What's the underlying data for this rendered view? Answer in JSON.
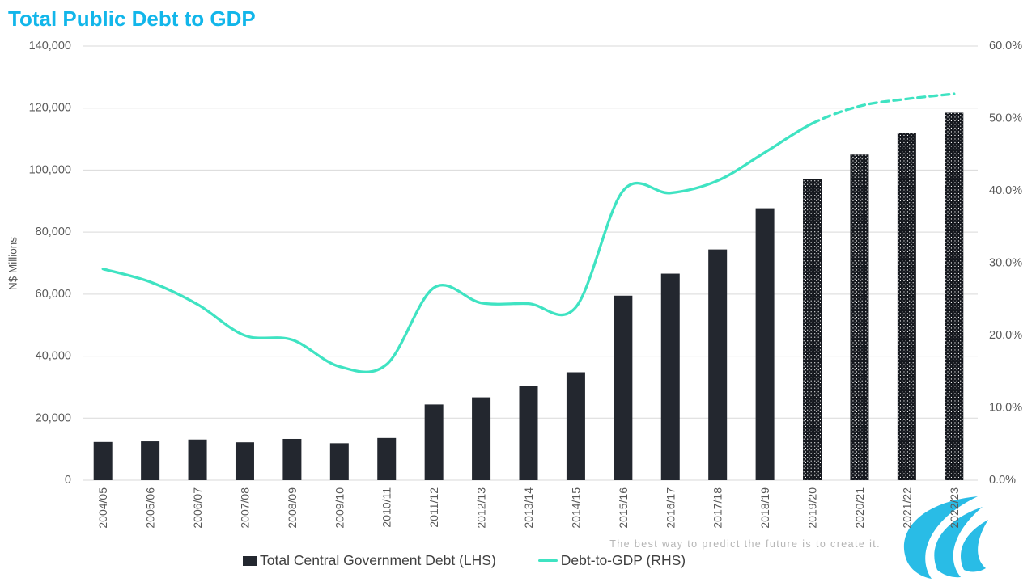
{
  "header": {
    "title": "Total Public Debt to GDP"
  },
  "footer": {
    "tagline": "The best way to predict the future is to create it.",
    "logo": "cyan-swoosh-logo"
  },
  "legend": {
    "items": [
      {
        "label": "Total Central Government Debt (LHS)",
        "marker": "bar-swatch",
        "color": "#23272f"
      },
      {
        "label": "Debt-to-GDP (RHS)",
        "marker": "line-swatch",
        "color": "#3fe3c2"
      }
    ]
  },
  "colors": {
    "title": "#12b6ea",
    "bar": "#23272f",
    "line": "#3fe3c2",
    "grid": "#d9d9d9",
    "axis_text": "#595959",
    "logo": "#29bce6",
    "tagline": "#b5b5b5"
  },
  "chart_data": {
    "type": "bar",
    "subtype": "combo-bar-line",
    "title": "Total Public Debt to GDP",
    "categories": [
      "2004/05",
      "2005/06",
      "2006/07",
      "2007/08",
      "2008/09",
      "2009/10",
      "2010/11",
      "2011/12",
      "2012/13",
      "2013/14",
      "2014/15",
      "2015/16",
      "2016/17",
      "2017/18",
      "2018/19",
      "2019/20",
      "2020/21",
      "2021/22",
      "2022/23"
    ],
    "series": [
      {
        "name": "Total Central Government Debt (LHS)",
        "type": "bar",
        "axis": "left",
        "unit": "N$ millions",
        "color": "#23272f",
        "values": [
          12300,
          12500,
          13100,
          12200,
          13300,
          11900,
          13600,
          24400,
          26700,
          30400,
          34800,
          59500,
          66600,
          74400,
          87700,
          97000,
          105000,
          112000,
          118500
        ],
        "hatched_from_index": 15
      },
      {
        "name": "Debt-to-GDP (RHS)",
        "type": "line",
        "axis": "right",
        "unit": "percent",
        "color": "#3fe3c2",
        "values": [
          29.2,
          27.4,
          24.3,
          20.0,
          19.4,
          15.7,
          16.0,
          26.6,
          24.5,
          24.4,
          23.9,
          40.0,
          39.7,
          41.4,
          45.3,
          49.3,
          51.7,
          52.7,
          53.4
        ],
        "dashed_from_index": 15
      }
    ],
    "left_axis": {
      "title": "N$ Millions",
      "min": 0,
      "max": 140000,
      "ticks": [
        "0",
        "20,000",
        "40,000",
        "60,000",
        "80,000",
        "100,000",
        "120,000",
        "140,000"
      ]
    },
    "right_axis": {
      "min": 0,
      "max": 60,
      "ticks": [
        "0.0%",
        "10.0%",
        "20.0%",
        "30.0%",
        "40.0%",
        "50.0%",
        "60.0%"
      ]
    },
    "grid": "horizontal",
    "legend_position": "bottom"
  }
}
